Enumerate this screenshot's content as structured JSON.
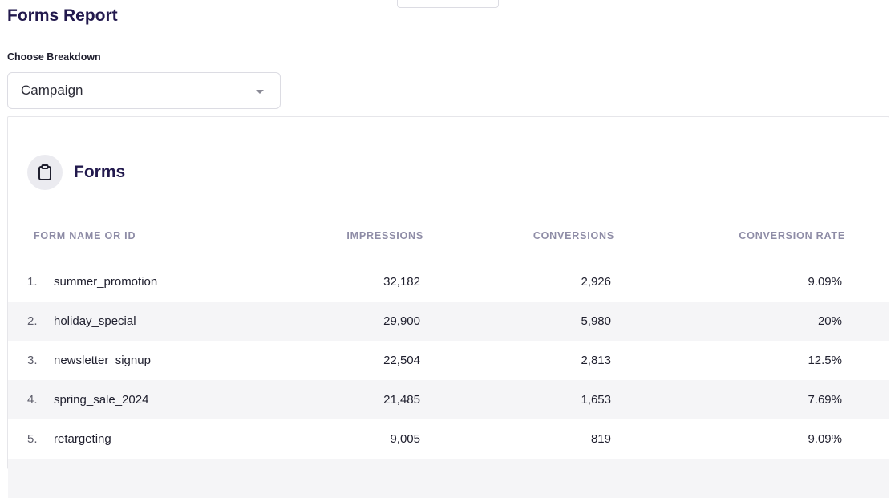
{
  "header": {
    "title": "Forms Report"
  },
  "breakdown": {
    "label": "Choose Breakdown",
    "selected": "Campaign"
  },
  "card": {
    "title": "Forms",
    "icon": "clipboard-icon",
    "columns": [
      "FORM NAME OR ID",
      "IMPRESSIONS",
      "CONVERSIONS",
      "CONVERSION RATE"
    ],
    "rows": [
      {
        "index": "1.",
        "name": "summer_promotion",
        "impressions": "32,182",
        "conversions": "2,926",
        "rate": "9.09%"
      },
      {
        "index": "2.",
        "name": "holiday_special",
        "impressions": "29,900",
        "conversions": "5,980",
        "rate": "20%"
      },
      {
        "index": "3.",
        "name": "newsletter_signup",
        "impressions": "22,504",
        "conversions": "2,813",
        "rate": "12.5%"
      },
      {
        "index": "4.",
        "name": "spring_sale_2024",
        "impressions": "21,485",
        "conversions": "1,653",
        "rate": "7.69%"
      },
      {
        "index": "5.",
        "name": "retargeting",
        "impressions": "9,005",
        "conversions": "819",
        "rate": "9.09%"
      }
    ]
  },
  "colors": {
    "title": "#22194d",
    "header_text": "#8e8ca6",
    "row_alt": "#f5f5f7"
  }
}
